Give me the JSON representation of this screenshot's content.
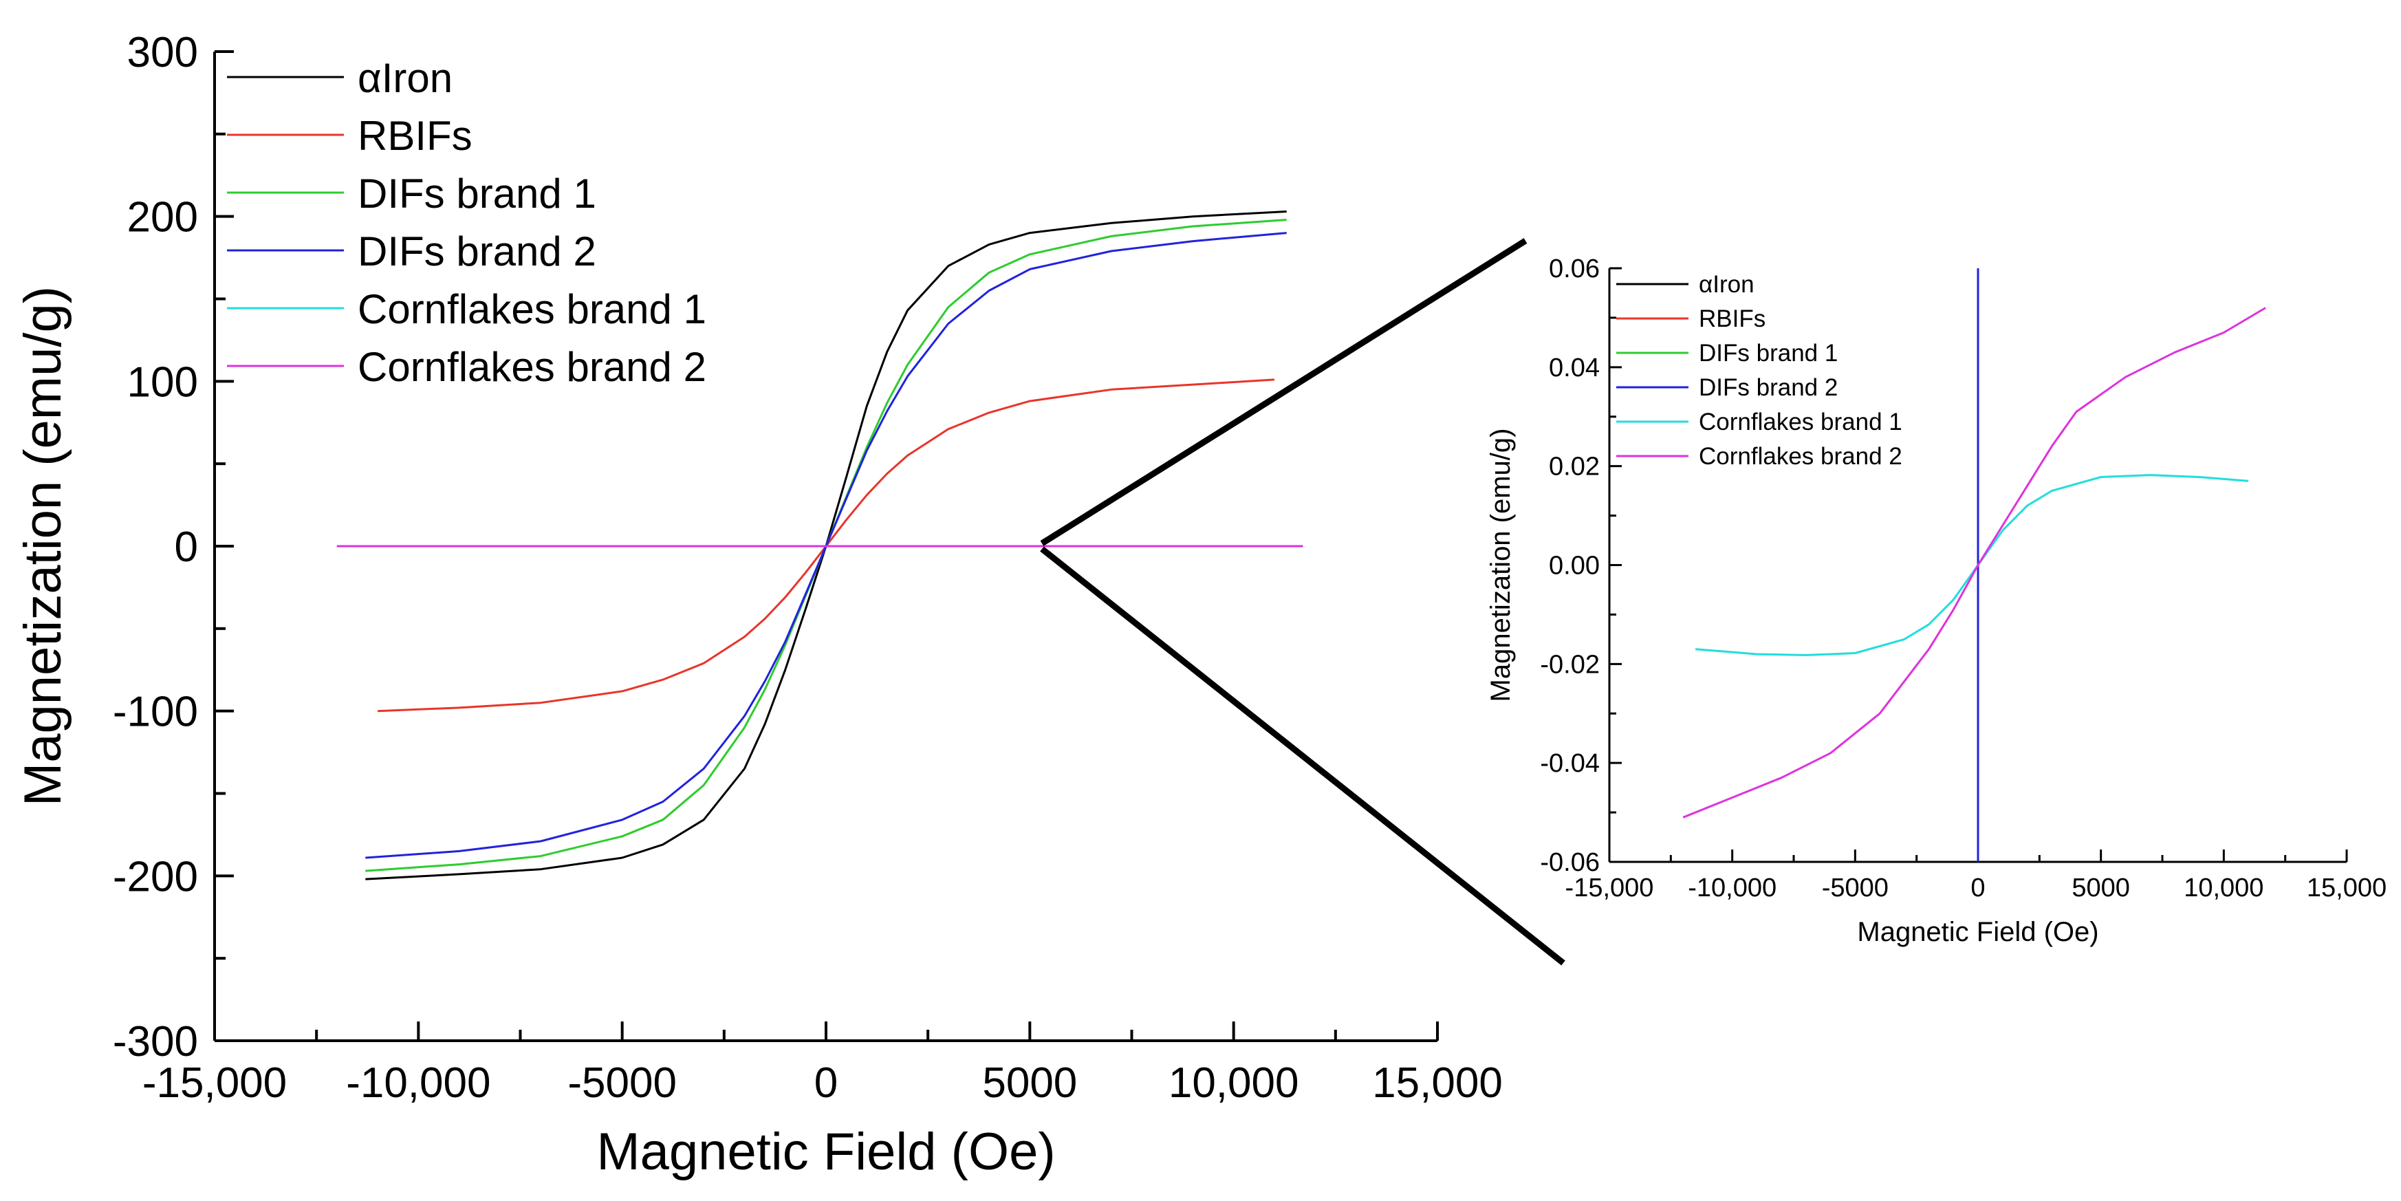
{
  "chart_data": [
    {
      "type": "line",
      "id": "main",
      "title": "",
      "xlabel": "Magnetic Field (Oe)",
      "ylabel": "Magnetization (emu/g)",
      "xlim": [
        -15000,
        15000
      ],
      "ylim": [
        -300,
        300
      ],
      "xticks": [
        -15000,
        -10000,
        -5000,
        0,
        5000,
        10000,
        15000
      ],
      "xtick_labels": [
        "-15,000",
        "-10,000",
        "-5000",
        "0",
        "5000",
        "10,000",
        "15,000"
      ],
      "yticks": [
        -300,
        -200,
        -100,
        0,
        100,
        200,
        300
      ],
      "ytick_labels": [
        "-300",
        "-200",
        "-100",
        "0",
        "100",
        "200",
        "300"
      ],
      "legend_position": "top-left",
      "series": [
        {
          "name": "αIron",
          "color": "#000000",
          "x": [
            -11300,
            -9000,
            -7000,
            -5000,
            -4000,
            -3000,
            -2000,
            -1500,
            -1000,
            -500,
            0,
            500,
            1000,
            1500,
            2000,
            3000,
            4000,
            5000,
            7000,
            9000,
            11300
          ],
          "y": [
            -202,
            -199,
            -196,
            -189,
            -181,
            -166,
            -135,
            -108,
            -75,
            -38,
            0,
            42,
            85,
            118,
            143,
            170,
            183,
            190,
            196,
            200,
            203
          ]
        },
        {
          "name": "RBIFs",
          "color": "#e8352b",
          "x": [
            -11000,
            -9000,
            -7000,
            -5000,
            -4000,
            -3000,
            -2000,
            -1500,
            -1000,
            -500,
            0,
            500,
            1000,
            1500,
            2000,
            3000,
            4000,
            5000,
            7000,
            9000,
            11000
          ],
          "y": [
            -100,
            -98,
            -95,
            -88,
            -81,
            -71,
            -55,
            -44,
            -31,
            -16,
            0,
            16,
            31,
            44,
            55,
            71,
            81,
            88,
            95,
            98,
            101
          ]
        },
        {
          "name": "DIFs brand 1",
          "color": "#2ecc2e",
          "x": [
            -11300,
            -9000,
            -7000,
            -5000,
            -4000,
            -3000,
            -2000,
            -1500,
            -1000,
            -500,
            0,
            500,
            1000,
            1500,
            2000,
            3000,
            4000,
            5000,
            7000,
            9000,
            11300
          ],
          "y": [
            -197,
            -193,
            -188,
            -176,
            -166,
            -145,
            -110,
            -87,
            -60,
            -30,
            0,
            30,
            60,
            87,
            110,
            145,
            166,
            177,
            188,
            194,
            198
          ]
        },
        {
          "name": "DIFs brand 2",
          "color": "#2222dd",
          "x": [
            -11300,
            -9000,
            -7000,
            -5000,
            -4000,
            -3000,
            -2000,
            -1500,
            -1000,
            -500,
            0,
            500,
            1000,
            1500,
            2000,
            3000,
            4000,
            5000,
            7000,
            9000,
            11300
          ],
          "y": [
            -189,
            -185,
            -179,
            -166,
            -155,
            -135,
            -103,
            -82,
            -58,
            -29,
            0,
            29,
            58,
            82,
            103,
            135,
            155,
            168,
            179,
            185,
            190
          ]
        },
        {
          "name": "Cornflakes brand 1",
          "color": "#22dddd",
          "x": [
            -12000,
            11700
          ],
          "y": [
            0,
            0
          ]
        },
        {
          "name": "Cornflakes brand 2",
          "color": "#dd33dd",
          "x": [
            -12000,
            11700
          ],
          "y": [
            0,
            0
          ]
        }
      ]
    },
    {
      "type": "line",
      "id": "inset",
      "title": "",
      "xlabel": "Magnetic Field (Oe)",
      "ylabel": "Magnetization (emu/g)",
      "xlim": [
        -15000,
        15000
      ],
      "ylim": [
        -0.06,
        0.06
      ],
      "xticks": [
        -15000,
        -10000,
        -5000,
        0,
        5000,
        10000,
        15000
      ],
      "xtick_labels": [
        "-15,000",
        "-10,000",
        "-5000",
        "0",
        "5000",
        "10,000",
        "15,000"
      ],
      "yticks": [
        -0.06,
        -0.04,
        -0.02,
        0.0,
        0.02,
        0.04,
        0.06
      ],
      "ytick_labels": [
        "-0.06",
        "-0.04",
        "-0.02",
        "0.00",
        "0.02",
        "0.04",
        "0.06"
      ],
      "legend_position": "top-left",
      "series": [
        {
          "name": "αIron",
          "color": "#000000",
          "x": [],
          "y": []
        },
        {
          "name": "RBIFs",
          "color": "#e8352b",
          "x": [],
          "y": []
        },
        {
          "name": "DIFs brand 1",
          "color": "#2ecc2e",
          "x": [],
          "y": []
        },
        {
          "name": "DIFs brand 2",
          "color": "#2222dd",
          "x": [
            0,
            0
          ],
          "y": [
            -0.06,
            0.06
          ]
        },
        {
          "name": "Cornflakes brand 1",
          "color": "#22dddd",
          "x": [
            -11500,
            -9000,
            -7000,
            -5000,
            -3000,
            -2000,
            -1000,
            0,
            1000,
            2000,
            3000,
            5000,
            7000,
            9000,
            11000
          ],
          "y": [
            -0.017,
            -0.018,
            -0.0182,
            -0.0178,
            -0.015,
            -0.012,
            -0.007,
            0.0,
            0.007,
            0.012,
            0.015,
            0.0178,
            0.0182,
            0.0178,
            0.017
          ]
        },
        {
          "name": "Cornflakes brand 2",
          "color": "#dd33dd",
          "x": [
            -12000,
            -10000,
            -8000,
            -6000,
            -4000,
            -2000,
            -1000,
            0,
            1000,
            2000,
            3000,
            4000,
            6000,
            8000,
            10000,
            11700
          ],
          "y": [
            -0.051,
            -0.047,
            -0.043,
            -0.038,
            -0.03,
            -0.017,
            -0.009,
            0.0,
            0.008,
            0.016,
            0.024,
            0.031,
            0.038,
            0.043,
            0.047,
            0.052
          ]
        }
      ]
    }
  ]
}
